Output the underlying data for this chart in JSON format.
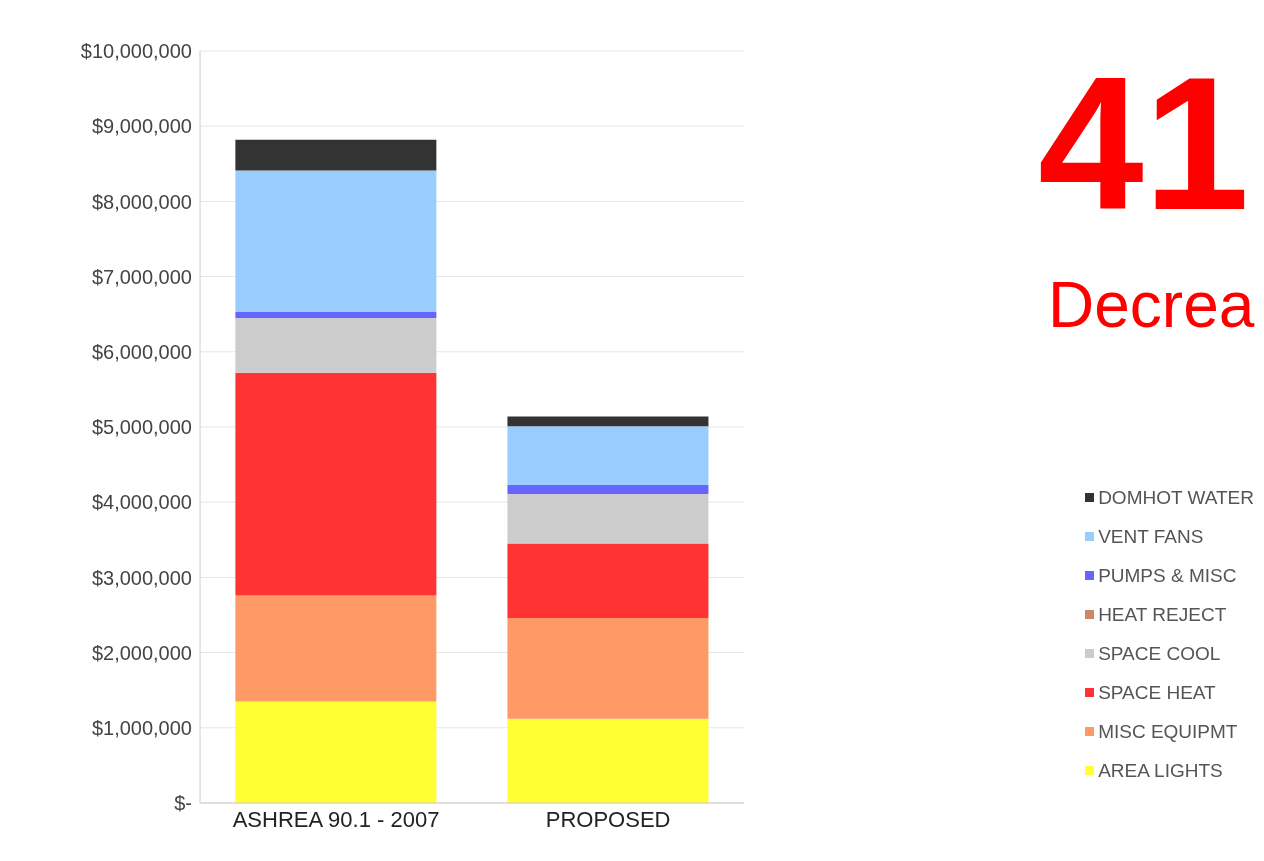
{
  "chart_data": {
    "type": "bar",
    "stacked": true,
    "categories": [
      "ASHREA 90.1 - 2007",
      "PROPOSED"
    ],
    "series": [
      {
        "name": "AREA LIGHTS",
        "color": "#ffff33",
        "values": [
          1350000,
          1120000
        ]
      },
      {
        "name": "MISC EQUIPMT",
        "color": "#ff9966",
        "values": [
          1410000,
          1340000
        ]
      },
      {
        "name": "SPACE HEAT",
        "color": "#ff3333",
        "values": [
          2960000,
          990000
        ]
      },
      {
        "name": "SPACE COOL",
        "color": "#cccccc",
        "values": [
          730000,
          660000
        ]
      },
      {
        "name": "HEAT REJECT",
        "color": "#cc8866",
        "values": [
          0,
          0
        ]
      },
      {
        "name": "PUMPS & MISC",
        "color": "#6666ff",
        "values": [
          80000,
          120000
        ]
      },
      {
        "name": "VENT FANS",
        "color": "#99ccff",
        "values": [
          1880000,
          780000
        ]
      },
      {
        "name": "DOMHOT WATER",
        "color": "#333333",
        "values": [
          410000,
          130000
        ]
      }
    ],
    "ylim": [
      0,
      10000000
    ],
    "yticks": [
      {
        "value": 0,
        "label": "$-"
      },
      {
        "value": 1000000,
        "label": "$1,000,000"
      },
      {
        "value": 2000000,
        "label": "$2,000,000"
      },
      {
        "value": 3000000,
        "label": "$3,000,000"
      },
      {
        "value": 4000000,
        "label": "$4,000,000"
      },
      {
        "value": 5000000,
        "label": "$5,000,000"
      },
      {
        "value": 6000000,
        "label": "$6,000,000"
      },
      {
        "value": 7000000,
        "label": "$7,000,000"
      },
      {
        "value": 8000000,
        "label": "$8,000,000"
      },
      {
        "value": 9000000,
        "label": "$9,000,000"
      },
      {
        "value": 10000000,
        "label": "$10,000,000"
      }
    ],
    "grid": "y",
    "legend": "right",
    "annotations": [
      "41",
      "Decrea"
    ]
  }
}
